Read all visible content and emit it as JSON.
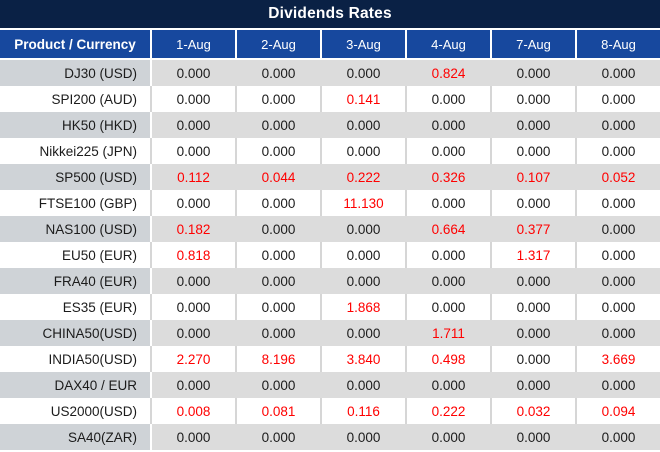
{
  "title": "Dividends Rates",
  "colors": {
    "title_bar_bg": "#0a2145",
    "header_bg": "#17489e",
    "header_text": "#ffffff",
    "row_gray_product_bg": "#cfd3d7",
    "row_gray_data_bg": "#dcdcdc",
    "highlight_red": "#ff0000",
    "text_dark": "#1b1b1b"
  },
  "chart_data": {
    "type": "table",
    "title": "Dividends Rates",
    "product_header": "Product / Currency",
    "date_headers": [
      "1-Aug",
      "2-Aug",
      "3-Aug",
      "4-Aug",
      "7-Aug",
      "8-Aug"
    ],
    "rows": [
      {
        "product": "DJ30 (USD)",
        "values": [
          "0.000",
          "0.000",
          "0.000",
          "0.824",
          "0.000",
          "0.000"
        ],
        "red": [
          false,
          false,
          false,
          true,
          false,
          false
        ]
      },
      {
        "product": "SPI200 (AUD)",
        "values": [
          "0.000",
          "0.000",
          "0.141",
          "0.000",
          "0.000",
          "0.000"
        ],
        "red": [
          false,
          false,
          true,
          false,
          false,
          false
        ]
      },
      {
        "product": "HK50 (HKD)",
        "values": [
          "0.000",
          "0.000",
          "0.000",
          "0.000",
          "0.000",
          "0.000"
        ],
        "red": [
          false,
          false,
          false,
          false,
          false,
          false
        ]
      },
      {
        "product": "Nikkei225 (JPN)",
        "values": [
          "0.000",
          "0.000",
          "0.000",
          "0.000",
          "0.000",
          "0.000"
        ],
        "red": [
          false,
          false,
          false,
          false,
          false,
          false
        ]
      },
      {
        "product": "SP500 (USD)",
        "values": [
          "0.112",
          "0.044",
          "0.222",
          "0.326",
          "0.107",
          "0.052"
        ],
        "red": [
          true,
          true,
          true,
          true,
          true,
          true
        ]
      },
      {
        "product": "FTSE100 (GBP)",
        "values": [
          "0.000",
          "0.000",
          "11.130",
          "0.000",
          "0.000",
          "0.000"
        ],
        "red": [
          false,
          false,
          true,
          false,
          false,
          false
        ]
      },
      {
        "product": "NAS100 (USD)",
        "values": [
          "0.182",
          "0.000",
          "0.000",
          "0.664",
          "0.377",
          "0.000"
        ],
        "red": [
          true,
          false,
          false,
          true,
          true,
          false
        ]
      },
      {
        "product": "EU50 (EUR)",
        "values": [
          "0.818",
          "0.000",
          "0.000",
          "0.000",
          "1.317",
          "0.000"
        ],
        "red": [
          true,
          false,
          false,
          false,
          true,
          false
        ]
      },
      {
        "product": "FRA40 (EUR)",
        "values": [
          "0.000",
          "0.000",
          "0.000",
          "0.000",
          "0.000",
          "0.000"
        ],
        "red": [
          false,
          false,
          false,
          false,
          false,
          false
        ]
      },
      {
        "product": "ES35 (EUR)",
        "values": [
          "0.000",
          "0.000",
          "1.868",
          "0.000",
          "0.000",
          "0.000"
        ],
        "red": [
          false,
          false,
          true,
          false,
          false,
          false
        ]
      },
      {
        "product": "CHINA50(USD)",
        "values": [
          "0.000",
          "0.000",
          "0.000",
          "1.711",
          "0.000",
          "0.000"
        ],
        "red": [
          false,
          false,
          false,
          true,
          false,
          false
        ]
      },
      {
        "product": "INDIA50(USD)",
        "values": [
          "2.270",
          "8.196",
          "3.840",
          "0.498",
          "0.000",
          "3.669"
        ],
        "red": [
          true,
          true,
          true,
          true,
          false,
          true
        ]
      },
      {
        "product": "DAX40 / EUR",
        "values": [
          "0.000",
          "0.000",
          "0.000",
          "0.000",
          "0.000",
          "0.000"
        ],
        "red": [
          false,
          false,
          false,
          false,
          false,
          false
        ]
      },
      {
        "product": "US2000(USD)",
        "values": [
          "0.008",
          "0.081",
          "0.116",
          "0.222",
          "0.032",
          "0.094"
        ],
        "red": [
          true,
          true,
          true,
          true,
          true,
          true
        ]
      },
      {
        "product": "SA40(ZAR)",
        "values": [
          "0.000",
          "0.000",
          "0.000",
          "0.000",
          "0.000",
          "0.000"
        ],
        "red": [
          false,
          false,
          false,
          false,
          false,
          false
        ]
      }
    ]
  }
}
